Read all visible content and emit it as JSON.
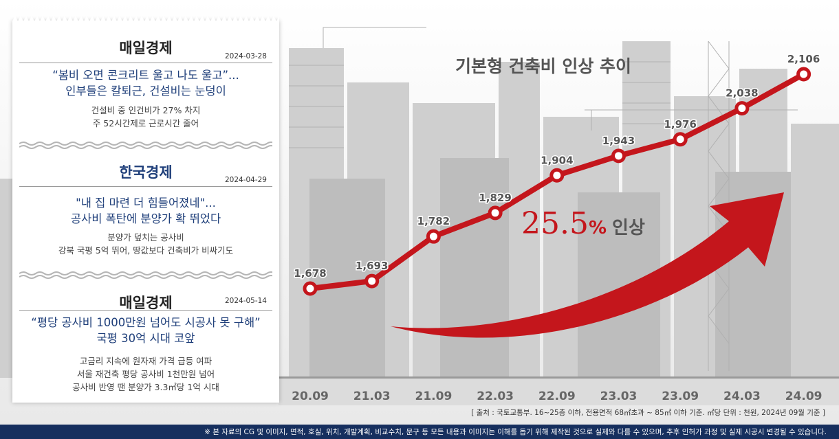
{
  "articles": [
    {
      "source": "매일경제",
      "date": "2024-03-28",
      "headline": [
        "“봄비 오면 콘크리트 울고 나도 울고”...",
        "인부들은 칼퇴근, 건설비는 눈덩이"
      ],
      "sub": [
        "건설비 중 인건비가 27% 차지",
        "주 52시간제로 근로시간 줄어"
      ]
    },
    {
      "source": "한국경제",
      "date": "2024-04-29",
      "headline": [
        "\"내 집 마련 더 힘들어졌네\"...",
        "공사비 폭탄에 분양가 확 뛰었다"
      ],
      "sub": [
        "분양가 덮치는 공사비",
        "강북 국평 5억 뛰어, 땅값보다 건축비가 비싸기도"
      ]
    },
    {
      "source": "매일경제",
      "date": "2024-05-14",
      "headline": [
        "“평당 공사비 1000만원 넘어도 시공사 못 구해”",
        "국평 30억 시대 코앞"
      ],
      "sub": [
        "고금리 지속에 원자재 가격 급등 여파",
        "서울 재건축 평당 공사비 1천만원 넘어",
        "공사비 반영 땐 분양가 3.3㎡당 1억 시대"
      ]
    }
  ],
  "chart_data": {
    "type": "line",
    "title": "기본형 건축비 인상 추이",
    "categories": [
      "20.09",
      "21.03",
      "21.09",
      "22.03",
      "22.09",
      "23.03",
      "23.09",
      "24.03",
      "24.09"
    ],
    "series": [
      {
        "values": [
          1678,
          1693,
          1782,
          1829,
          1904,
          1943,
          1976,
          2038,
          2106
        ]
      }
    ],
    "value_labels": [
      "1,678",
      "1,693",
      "1,782",
      "1,829",
      "1,904",
      "1,943",
      "1,976",
      "2,038",
      "2,106"
    ],
    "annotation": {
      "number": "25.5",
      "unit": "%",
      "text": "인상"
    },
    "line_color": "#c4161c",
    "arrow_color": "#c4161c"
  },
  "source_note": "[ 출처 : 국토교통부. 16~25층 이하, 전용면적 68㎡초과 ~ 85㎡ 이하 기준. ㎡당 단위 : 천원, 2024년 09월 기준 ]",
  "footer_note": "※ 본 자료의 CG 및 이미지, 면적, 호실, 위치, 개발계획, 비교수치, 문구 등 모든 내용과 이미지는 이해를 돕기 위해 제작된 것으로 실제와 다를 수 있으며, 추후 인허가 과정 및 실제 시공시 변경될 수 있습니다."
}
